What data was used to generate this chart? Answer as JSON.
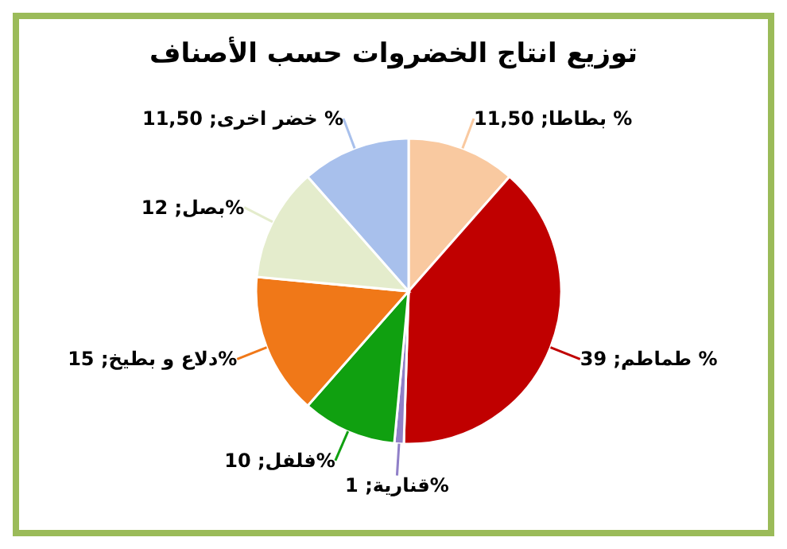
{
  "chart_data": {
    "type": "pie",
    "title": "توزيع انتاج الخضروات حسب الأصناف",
    "categories": [
      "بطاطا",
      "طماطم",
      "قنارية",
      "فلفل",
      "دلاع و بطيخ",
      "بصل",
      "خضر اخرى"
    ],
    "values": [
      11.5,
      39,
      1,
      10,
      15,
      12,
      11.5
    ],
    "value_labels": [
      "11,50 %",
      "39 %",
      "1%",
      "10%",
      "15%",
      "12%",
      "11,50 %"
    ],
    "colors": [
      "#f9c9a0",
      "#c00000",
      "#9080c8",
      "#10a010",
      "#f07818",
      "#e4eccc",
      "#a8c0ec"
    ],
    "legend": false
  }
}
